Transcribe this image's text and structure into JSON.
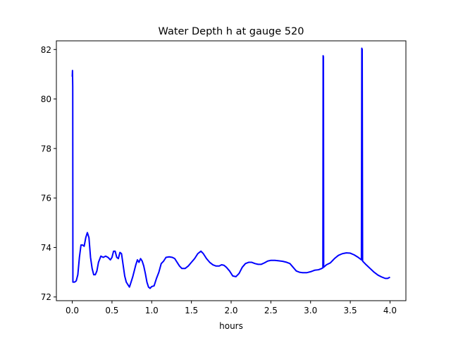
{
  "chart_data": {
    "type": "line",
    "title": "Water Depth h at gauge 520",
    "xlabel": "hours",
    "ylabel": "",
    "xlim": [
      -0.2,
      4.2
    ],
    "ylim": [
      71.85,
      82.35
    ],
    "xticks": [
      0.0,
      0.5,
      1.0,
      1.5,
      2.0,
      2.5,
      3.0,
      3.5,
      4.0
    ],
    "xtick_labels": [
      "0.0",
      "0.5",
      "1.0",
      "1.5",
      "2.0",
      "2.5",
      "3.0",
      "3.5",
      "4.0"
    ],
    "yticks": [
      72,
      74,
      76,
      78,
      80,
      82
    ],
    "ytick_labels": [
      "72",
      "74",
      "76",
      "78",
      "80",
      "82"
    ],
    "grid": false,
    "line_color": "#0000ff",
    "series": [
      {
        "name": "",
        "points": [
          [
            0.0,
            80.9
          ],
          [
            0.003,
            81.15
          ],
          [
            0.006,
            80.5
          ],
          [
            0.008,
            72.6
          ],
          [
            0.03,
            72.6
          ],
          [
            0.05,
            72.65
          ],
          [
            0.07,
            72.9
          ],
          [
            0.09,
            73.6
          ],
          [
            0.11,
            74.1
          ],
          [
            0.13,
            74.1
          ],
          [
            0.15,
            74.05
          ],
          [
            0.17,
            74.4
          ],
          [
            0.19,
            74.6
          ],
          [
            0.21,
            74.4
          ],
          [
            0.23,
            73.6
          ],
          [
            0.25,
            73.15
          ],
          [
            0.27,
            72.9
          ],
          [
            0.29,
            72.9
          ],
          [
            0.31,
            73.05
          ],
          [
            0.33,
            73.4
          ],
          [
            0.36,
            73.65
          ],
          [
            0.39,
            73.6
          ],
          [
            0.42,
            73.65
          ],
          [
            0.45,
            73.6
          ],
          [
            0.48,
            73.5
          ],
          [
            0.5,
            73.6
          ],
          [
            0.52,
            73.85
          ],
          [
            0.54,
            73.85
          ],
          [
            0.56,
            73.6
          ],
          [
            0.58,
            73.55
          ],
          [
            0.6,
            73.8
          ],
          [
            0.62,
            73.75
          ],
          [
            0.64,
            73.3
          ],
          [
            0.66,
            72.85
          ],
          [
            0.68,
            72.6
          ],
          [
            0.7,
            72.5
          ],
          [
            0.72,
            72.4
          ],
          [
            0.74,
            72.6
          ],
          [
            0.76,
            72.8
          ],
          [
            0.78,
            73.05
          ],
          [
            0.8,
            73.3
          ],
          [
            0.82,
            73.5
          ],
          [
            0.84,
            73.4
          ],
          [
            0.86,
            73.55
          ],
          [
            0.88,
            73.45
          ],
          [
            0.9,
            73.25
          ],
          [
            0.92,
            72.95
          ],
          [
            0.94,
            72.6
          ],
          [
            0.96,
            72.4
          ],
          [
            0.98,
            72.35
          ],
          [
            1.0,
            72.42
          ],
          [
            1.03,
            72.45
          ],
          [
            1.06,
            72.75
          ],
          [
            1.09,
            73.0
          ],
          [
            1.12,
            73.35
          ],
          [
            1.15,
            73.45
          ],
          [
            1.18,
            73.6
          ],
          [
            1.22,
            73.62
          ],
          [
            1.26,
            73.6
          ],
          [
            1.29,
            73.55
          ],
          [
            1.32,
            73.4
          ],
          [
            1.35,
            73.25
          ],
          [
            1.38,
            73.15
          ],
          [
            1.42,
            73.15
          ],
          [
            1.46,
            73.25
          ],
          [
            1.5,
            73.4
          ],
          [
            1.54,
            73.55
          ],
          [
            1.58,
            73.75
          ],
          [
            1.62,
            73.85
          ],
          [
            1.65,
            73.75
          ],
          [
            1.69,
            73.55
          ],
          [
            1.73,
            73.4
          ],
          [
            1.77,
            73.3
          ],
          [
            1.81,
            73.25
          ],
          [
            1.85,
            73.25
          ],
          [
            1.88,
            73.3
          ],
          [
            1.91,
            73.28
          ],
          [
            1.94,
            73.2
          ],
          [
            1.98,
            73.05
          ],
          [
            2.02,
            72.85
          ],
          [
            2.06,
            72.82
          ],
          [
            2.1,
            72.95
          ],
          [
            2.14,
            73.2
          ],
          [
            2.18,
            73.35
          ],
          [
            2.22,
            73.4
          ],
          [
            2.26,
            73.4
          ],
          [
            2.3,
            73.35
          ],
          [
            2.34,
            73.32
          ],
          [
            2.38,
            73.32
          ],
          [
            2.42,
            73.38
          ],
          [
            2.46,
            73.45
          ],
          [
            2.5,
            73.48
          ],
          [
            2.55,
            73.48
          ],
          [
            2.6,
            73.46
          ],
          [
            2.65,
            73.44
          ],
          [
            2.7,
            73.4
          ],
          [
            2.74,
            73.35
          ],
          [
            2.78,
            73.2
          ],
          [
            2.82,
            73.05
          ],
          [
            2.86,
            73.0
          ],
          [
            2.9,
            72.98
          ],
          [
            2.95,
            72.98
          ],
          [
            3.0,
            73.02
          ],
          [
            3.05,
            73.08
          ],
          [
            3.1,
            73.1
          ],
          [
            3.14,
            73.15
          ],
          [
            3.155,
            73.18
          ],
          [
            3.158,
            81.75
          ],
          [
            3.162,
            81.7
          ],
          [
            3.165,
            73.2
          ],
          [
            3.2,
            73.3
          ],
          [
            3.25,
            73.38
          ],
          [
            3.3,
            73.55
          ],
          [
            3.35,
            73.68
          ],
          [
            3.4,
            73.75
          ],
          [
            3.45,
            73.78
          ],
          [
            3.5,
            73.77
          ],
          [
            3.55,
            73.7
          ],
          [
            3.6,
            73.6
          ],
          [
            3.64,
            73.5
          ],
          [
            3.645,
            82.05
          ],
          [
            3.65,
            82.0
          ],
          [
            3.655,
            73.45
          ],
          [
            3.7,
            73.3
          ],
          [
            3.75,
            73.15
          ],
          [
            3.8,
            73.0
          ],
          [
            3.85,
            72.88
          ],
          [
            3.9,
            72.8
          ],
          [
            3.94,
            72.75
          ],
          [
            3.97,
            72.75
          ],
          [
            4.0,
            72.8
          ]
        ]
      }
    ]
  }
}
